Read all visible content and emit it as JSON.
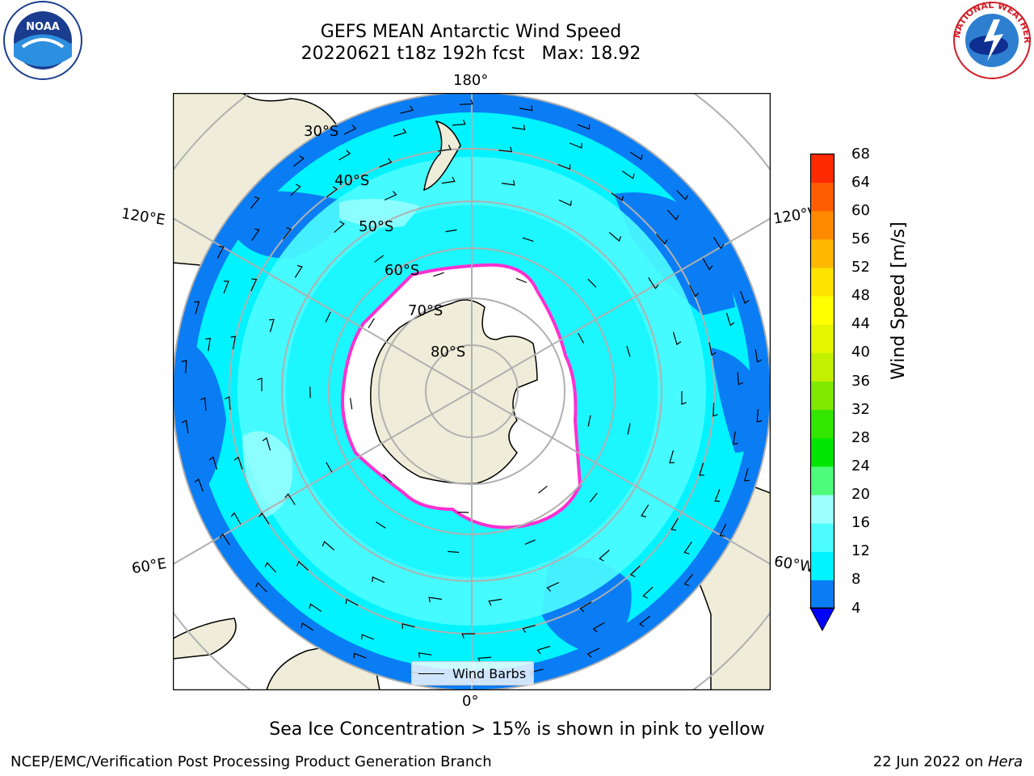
{
  "header": {
    "title_line1": "GEFS MEAN Antarctic Wind Speed",
    "title_line2": "20220621 t18z 192h fcst   Max: 18.92"
  },
  "logos": {
    "noaa_text": "NOAA",
    "nws_text": "NATIONAL WEATHER SERVICE"
  },
  "map": {
    "longitude_labels": {
      "top": "180°",
      "bottom": "0°",
      "left_upper": "120°E",
      "left_lower": "60°E",
      "right_upper": "120°W",
      "right_lower": "60°W"
    },
    "latitude_labels": [
      "30°S",
      "40°S",
      "50°S",
      "60°S",
      "70°S",
      "80°S"
    ],
    "legend": {
      "wind_barbs": "Wind Barbs"
    },
    "colors": {
      "land": "#efedd9",
      "ocean_lt8": "#0a7df5",
      "ocean_8_12": "#00f3ff",
      "ocean_12_16": "#4dfcff",
      "ocean_16_20": "#9effff",
      "ice_shelf": "#ffffff",
      "sea_ice_edge": "#ff30d0",
      "grid": "#b0b0b0"
    }
  },
  "colorbar": {
    "label": "Wind Speed [m/s]",
    "ticks": [
      "4",
      "8",
      "12",
      "16",
      "20",
      "24",
      "28",
      "32",
      "36",
      "40",
      "44",
      "48",
      "52",
      "56",
      "60",
      "64",
      "68"
    ],
    "colors": [
      "#0a7df5",
      "#00f3ff",
      "#4dfcff",
      "#9effff",
      "#4dfc7a",
      "#00e600",
      "#33e600",
      "#7fea00",
      "#c2f000",
      "#e5f500",
      "#ffff00",
      "#ffe400",
      "#ffb700",
      "#ff8a00",
      "#ff5e00",
      "#ff2a00",
      "#ff0000"
    ],
    "under_color": "#0000ff"
  },
  "subtitle": "Sea Ice Concentration > 15% is shown in pink to yellow",
  "footer": {
    "left": "NCEP/EMC/Verification Post Processing Product Generation Branch",
    "right_prefix": "22 Jun 2022 on ",
    "right_italic": "Hera"
  }
}
